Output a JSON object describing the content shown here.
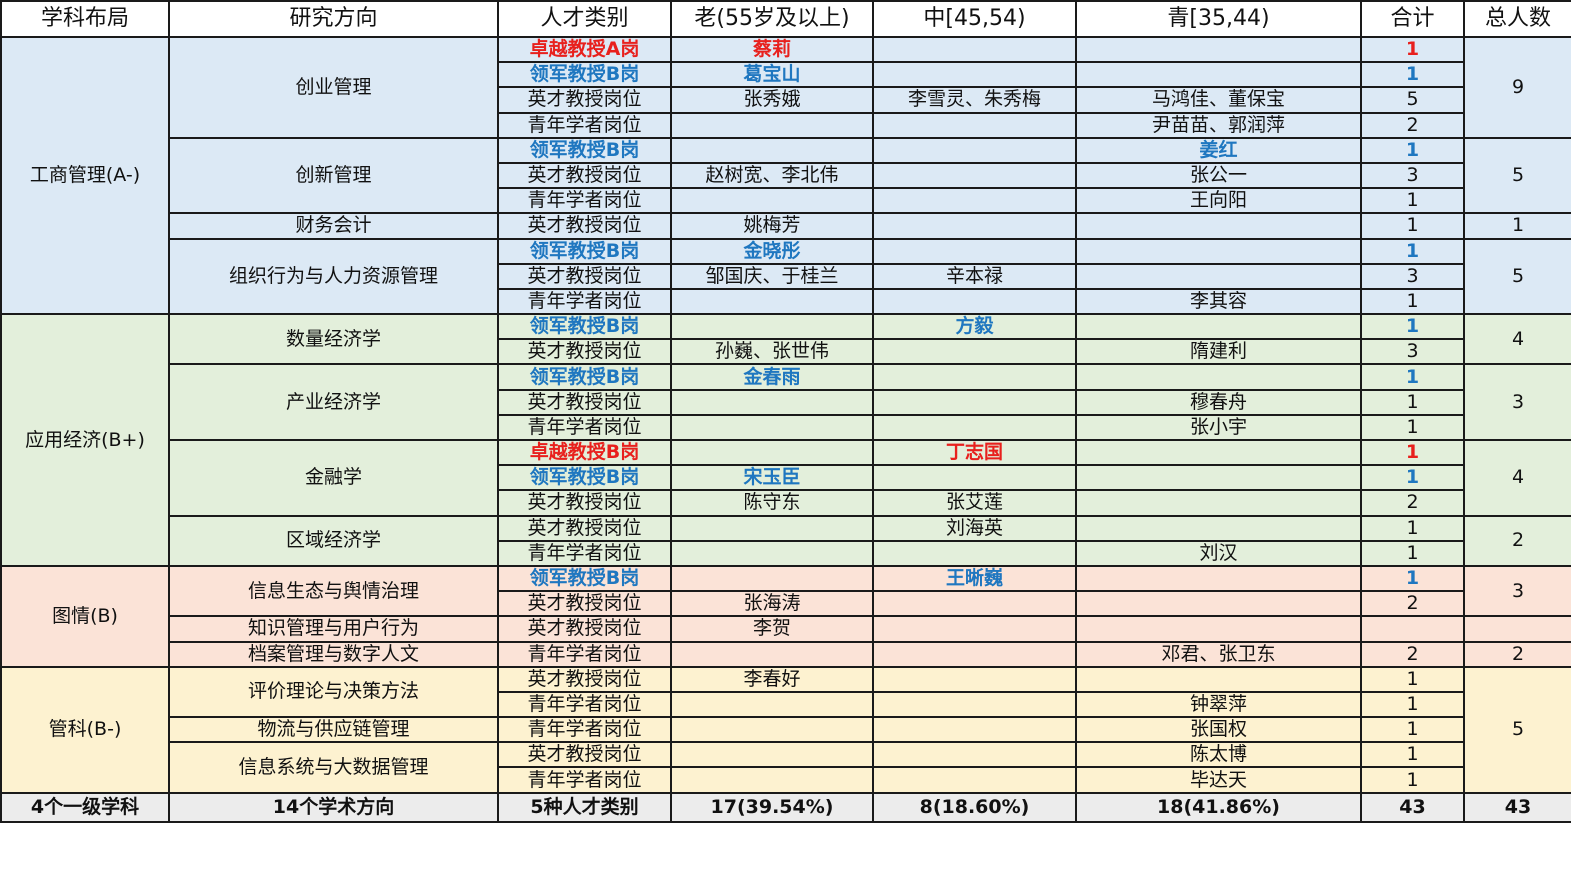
{
  "headers": [
    "学科布局",
    "研究方向",
    "人才类别",
    "老(55岁及以上)",
    "中[45,54)",
    "青[35,44)",
    "合计",
    "总人数"
  ],
  "colors": {
    "red": "#e8201d",
    "blue": "#1f77c0",
    "header_bg": "#ffffff",
    "footer_bg": "#ececec"
  },
  "disciplines": [
    {
      "name": "工商管理(A-)",
      "bg": "#dce9f5",
      "directions": [
        {
          "name": "创业管理",
          "total": "9",
          "rows": [
            {
              "category": "卓越教授A岗",
              "old": "蔡莉",
              "mid": "",
              "young": "",
              "sum": "1",
              "style": "red"
            },
            {
              "category": "领军教授B岗",
              "old": "葛宝山",
              "mid": "",
              "young": "",
              "sum": "1",
              "style": "blue"
            },
            {
              "category": "英才教授岗位",
              "old": "张秀娥",
              "mid": "李雪灵、朱秀梅",
              "young": "马鸿佳、董保宝",
              "sum": "5",
              "style": ""
            },
            {
              "category": "青年学者岗位",
              "old": "",
              "mid": "",
              "young": "尹苗苗、郭润萍",
              "sum": "2",
              "style": ""
            }
          ]
        },
        {
          "name": "创新管理",
          "total": "5",
          "rows": [
            {
              "category": "领军教授B岗",
              "old": "",
              "mid": "",
              "young": "姜红",
              "sum": "1",
              "style": "blue"
            },
            {
              "category": "英才教授岗位",
              "old": "赵树宽、李北伟",
              "mid": "",
              "young": "张公一",
              "sum": "3",
              "style": ""
            },
            {
              "category": "青年学者岗位",
              "old": "",
              "mid": "",
              "young": "王向阳",
              "sum": "1",
              "style": ""
            }
          ]
        },
        {
          "name": "财务会计",
          "total": "1",
          "rows": [
            {
              "category": "英才教授岗位",
              "old": "姚梅芳",
              "mid": "",
              "young": "",
              "sum": "1",
              "style": ""
            }
          ]
        },
        {
          "name": "组织行为与人力资源管理",
          "total": "5",
          "rows": [
            {
              "category": "领军教授B岗",
              "old": "金晓彤",
              "mid": "",
              "young": "",
              "sum": "1",
              "style": "blue"
            },
            {
              "category": "英才教授岗位",
              "old": "邹国庆、于桂兰",
              "mid": "辛本禄",
              "young": "",
              "sum": "3",
              "style": ""
            },
            {
              "category": "青年学者岗位",
              "old": "",
              "mid": "",
              "young": "李其容",
              "sum": "1",
              "style": ""
            }
          ]
        }
      ]
    },
    {
      "name": "应用经济(B+)",
      "bg": "#e3efdb",
      "directions": [
        {
          "name": "数量经济学",
          "total": "4",
          "rows": [
            {
              "category": "领军教授B岗",
              "old": "",
              "mid": "方毅",
              "young": "",
              "sum": "1",
              "style": "blue"
            },
            {
              "category": "英才教授岗位",
              "old": "孙巍、张世伟",
              "mid": "",
              "young": "隋建利",
              "sum": "3",
              "style": ""
            }
          ]
        },
        {
          "name": "产业经济学",
          "total": "3",
          "rows": [
            {
              "category": "领军教授B岗",
              "old": "金春雨",
              "mid": "",
              "young": "",
              "sum": "1",
              "style": "blue"
            },
            {
              "category": "英才教授岗位",
              "old": "",
              "mid": "",
              "young": "穆春舟",
              "sum": "1",
              "style": ""
            },
            {
              "category": "青年学者岗位",
              "old": "",
              "mid": "",
              "young": "张小宇",
              "sum": "1",
              "style": ""
            }
          ]
        },
        {
          "name": "金融学",
          "total": "4",
          "rows": [
            {
              "category": "卓越教授B岗",
              "old": "",
              "mid": "丁志国",
              "young": "",
              "sum": "1",
              "style": "red"
            },
            {
              "category": "领军教授B岗",
              "old": "宋玉臣",
              "mid": "",
              "young": "",
              "sum": "1",
              "style": "blue"
            },
            {
              "category": "英才教授岗位",
              "old": "陈守东",
              "mid": "张艾莲",
              "young": "",
              "sum": "2",
              "style": ""
            }
          ]
        },
        {
          "name": "区域经济学",
          "total": "2",
          "rows": [
            {
              "category": "英才教授岗位",
              "old": "",
              "mid": "刘海英",
              "young": "",
              "sum": "1",
              "style": ""
            },
            {
              "category": "青年学者岗位",
              "old": "",
              "mid": "",
              "young": "刘汉",
              "sum": "1",
              "style": ""
            }
          ]
        }
      ]
    },
    {
      "name": "图情(B)",
      "bg": "#fbe3d7",
      "directions": [
        {
          "name": "信息生态与舆情治理",
          "total": "3",
          "rows": [
            {
              "category": "领军教授B岗",
              "old": "",
              "mid": "王晰巍",
              "young": "",
              "sum": "1",
              "style": "blue"
            },
            {
              "category": "英才教授岗位",
              "old": "张海涛",
              "mid": "",
              "young": "",
              "sum": "2",
              "style": ""
            }
          ]
        },
        {
          "name": "知识管理与用户行为",
          "total": "",
          "rows": [
            {
              "category": "英才教授岗位",
              "old": "李贺",
              "mid": "",
              "young": "",
              "sum": "",
              "style": ""
            }
          ]
        },
        {
          "name": "档案管理与数字人文",
          "total": "2",
          "rows": [
            {
              "category": "青年学者岗位",
              "old": "",
              "mid": "",
              "young": "邓君、张卫东",
              "sum": "2",
              "style": ""
            }
          ]
        }
      ]
    },
    {
      "name": "管科(B-)",
      "bg": "#fdf2d0",
      "directions": [
        {
          "name": "评价理论与决策方法",
          "total": "5",
          "rows": [
            {
              "category": "英才教授岗位",
              "old": "李春好",
              "mid": "",
              "young": "",
              "sum": "1",
              "style": ""
            },
            {
              "category": "青年学者岗位",
              "old": "",
              "mid": "",
              "young": "钟翠萍",
              "sum": "1",
              "style": ""
            }
          ]
        },
        {
          "name": "物流与供应链管理",
          "total": null,
          "rows": [
            {
              "category": "青年学者岗位",
              "old": "",
              "mid": "",
              "young": "张国权",
              "sum": "1",
              "style": ""
            }
          ]
        },
        {
          "name": "信息系统与大数据管理",
          "total": null,
          "rows": [
            {
              "category": "英才教授岗位",
              "old": "",
              "mid": "",
              "young": "陈太博",
              "sum": "1",
              "style": ""
            },
            {
              "category": "青年学者岗位",
              "old": "",
              "mid": "",
              "young": "毕达天",
              "sum": "1",
              "style": ""
            }
          ]
        }
      ]
    }
  ],
  "footer": [
    "4个一级学科",
    "14个学术方向",
    "5种人才类别",
    "17(39.54%)",
    "8(18.60%)",
    "18(41.86%)",
    "43",
    "43"
  ]
}
